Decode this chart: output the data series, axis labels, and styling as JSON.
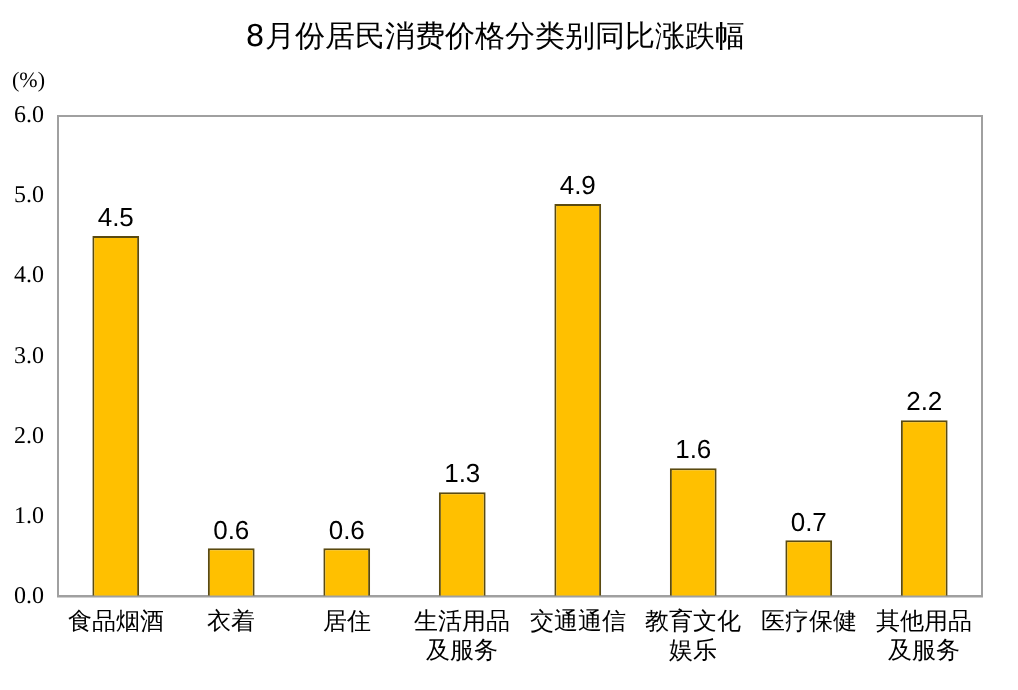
{
  "chart_data": {
    "type": "bar",
    "title": "8月份居民消费价格分类别同比涨跌幅",
    "ylabel": "(%)",
    "categories": [
      "食品烟酒",
      "衣着",
      "居住",
      "生活用品及服务",
      "交通通信",
      "教育文化娱乐",
      "医疗保健",
      "其他用品及服务"
    ],
    "values": [
      4.5,
      0.6,
      0.6,
      1.3,
      4.9,
      1.6,
      0.7,
      2.2
    ],
    "color": "#ffc000",
    "ylim": [
      0,
      6
    ],
    "yticks": [
      {
        "value": 0,
        "label": "0.0"
      },
      {
        "value": 1,
        "label": "1.0"
      },
      {
        "value": 2,
        "label": "2.0"
      },
      {
        "value": 3,
        "label": "3.0"
      },
      {
        "value": 4,
        "label": "4.0"
      },
      {
        "value": 5,
        "label": "5.0"
      },
      {
        "value": 6,
        "label": "6.0"
      }
    ],
    "grid": false,
    "legend": false,
    "data_labels": true
  }
}
